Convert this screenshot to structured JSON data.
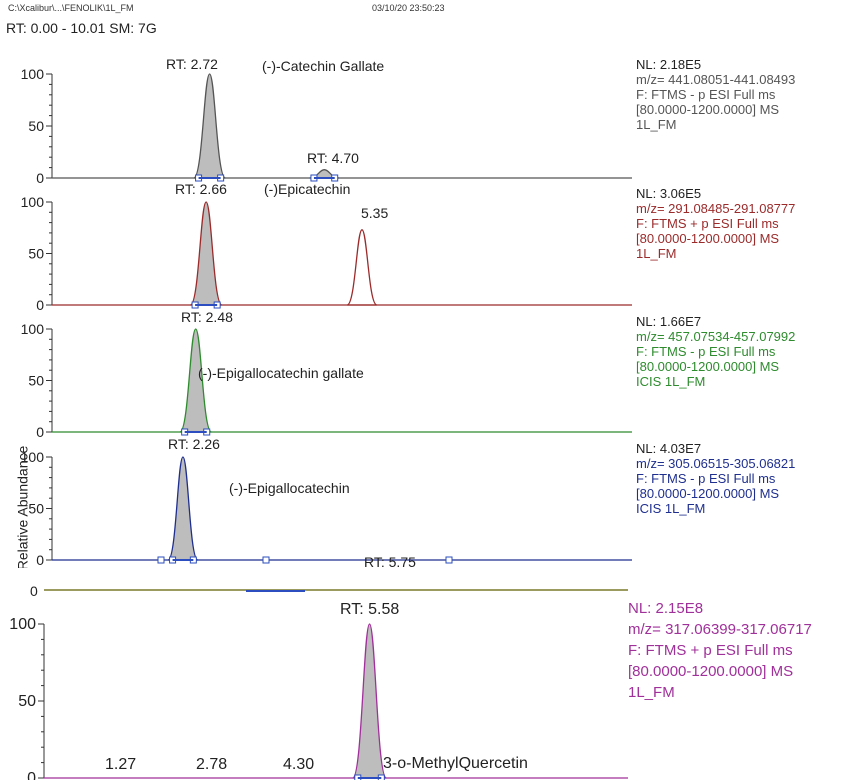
{
  "header": {
    "path": "C:\\Xcalibur\\...\\FENOLIK\\1L_FM",
    "datetime": "03/10/20 23:50:23",
    "rt_range": "RT: 0.00 - 10.01  SM: 7G"
  },
  "axis": {
    "ylabel": "Relative Abundance"
  },
  "colors": {
    "trace1": "#555555",
    "trace2": "#9b2b2b",
    "trace3": "#2e8b2e",
    "trace4": "#1f2f8f",
    "trace5": "#a0309a",
    "peak_fill": "#bdbdbd",
    "marker": "#2b4dbf"
  },
  "chart_data": [
    {
      "type": "area",
      "color": "#555555",
      "yticks": [
        "0",
        "50",
        "100"
      ],
      "ylim": [
        0,
        100
      ],
      "xlim": [
        0,
        10.01
      ],
      "peaks": [
        {
          "rt": 2.72,
          "height": 100,
          "width": 0.17,
          "filled": true,
          "label": "RT: 2.72"
        },
        {
          "rt": 4.7,
          "height": 8,
          "width": 0.16,
          "filled": true,
          "label": "RT: 4.70"
        }
      ],
      "compound": "(-)-Catechin Gallate",
      "info": [
        "NL: 2.18E5",
        "m/z= 441.08051-441.08493",
        "F: FTMS - p ESI Full ms",
        "[80.0000-1200.0000]  MS",
        "1L_FM"
      ]
    },
    {
      "type": "area",
      "color": "#9b2b2b",
      "yticks": [
        "0",
        "50",
        "100"
      ],
      "ylim": [
        0,
        100
      ],
      "xlim": [
        0,
        10.01
      ],
      "peaks": [
        {
          "rt": 2.66,
          "height": 100,
          "width": 0.17,
          "filled": true,
          "label": "RT: 2.66"
        },
        {
          "rt": 5.35,
          "height": 73,
          "width": 0.16,
          "filled": false,
          "label": "5.35"
        }
      ],
      "compound": "(-)Epicatechin",
      "info": [
        "NL: 3.06E5",
        "m/z= 291.08485-291.08777",
        "F: FTMS + p ESI Full ms",
        "[80.0000-1200.0000]  MS",
        "1L_FM"
      ]
    },
    {
      "type": "area",
      "color": "#2e8b2e",
      "yticks": [
        "0",
        "50",
        "100"
      ],
      "ylim": [
        0,
        100
      ],
      "xlim": [
        0,
        10.01
      ],
      "peaks": [
        {
          "rt": 2.48,
          "height": 100,
          "width": 0.17,
          "filled": true,
          "label": "RT: 2.48"
        }
      ],
      "compound": "(-)-Epigallocatechin gallate",
      "info": [
        "NL: 1.66E7",
        "m/z= 457.07534-457.07992",
        "F: FTMS - p ESI Full ms",
        "[80.0000-1200.0000]  MS",
        "ICIS 1L_FM"
      ]
    },
    {
      "type": "area",
      "color": "#1f2f8f",
      "yticks": [
        "0",
        "50",
        "100"
      ],
      "ylim": [
        0,
        100
      ],
      "xlim": [
        0,
        10.01
      ],
      "peaks": [
        {
          "rt": 2.26,
          "height": 100,
          "width": 0.16,
          "filled": true,
          "label": "RT: 2.26"
        },
        {
          "rt": 5.75,
          "height": 0,
          "width": 0.1,
          "filled": false,
          "label": "RT: 5.75"
        }
      ],
      "compound": "(-)-Epigallocatechin",
      "info": [
        "NL: 4.03E7",
        "m/z= 305.06515-305.06821",
        "F: FTMS - p ESI Full ms",
        "[80.0000-1200.0000]  MS",
        "ICIS 1L_FM"
      ]
    },
    {
      "type": "area",
      "color": "#a0309a",
      "yticks": [
        "0",
        "50",
        "100"
      ],
      "ylim": [
        0,
        100
      ],
      "xlim": [
        0,
        10.01
      ],
      "peaks": [
        {
          "rt": 5.58,
          "height": 100,
          "width": 0.18,
          "filled": true,
          "label": "RT: 5.58"
        },
        {
          "rt": 1.27,
          "height": 0,
          "width": 0.1,
          "filled": false,
          "label": "1.27"
        },
        {
          "rt": 2.78,
          "height": 0,
          "width": 0.1,
          "filled": false,
          "label": "2.78"
        },
        {
          "rt": 4.3,
          "height": 0,
          "width": 0.1,
          "filled": false,
          "label": "4.30"
        }
      ],
      "compound": "3-o-MethylQuercetin",
      "info": [
        "NL: 2.15E8",
        "m/z= 317.06399-317.06717",
        "F: FTMS + p ESI Full ms",
        "[80.0000-1200.0000]  MS",
        "1L_FM"
      ]
    }
  ]
}
